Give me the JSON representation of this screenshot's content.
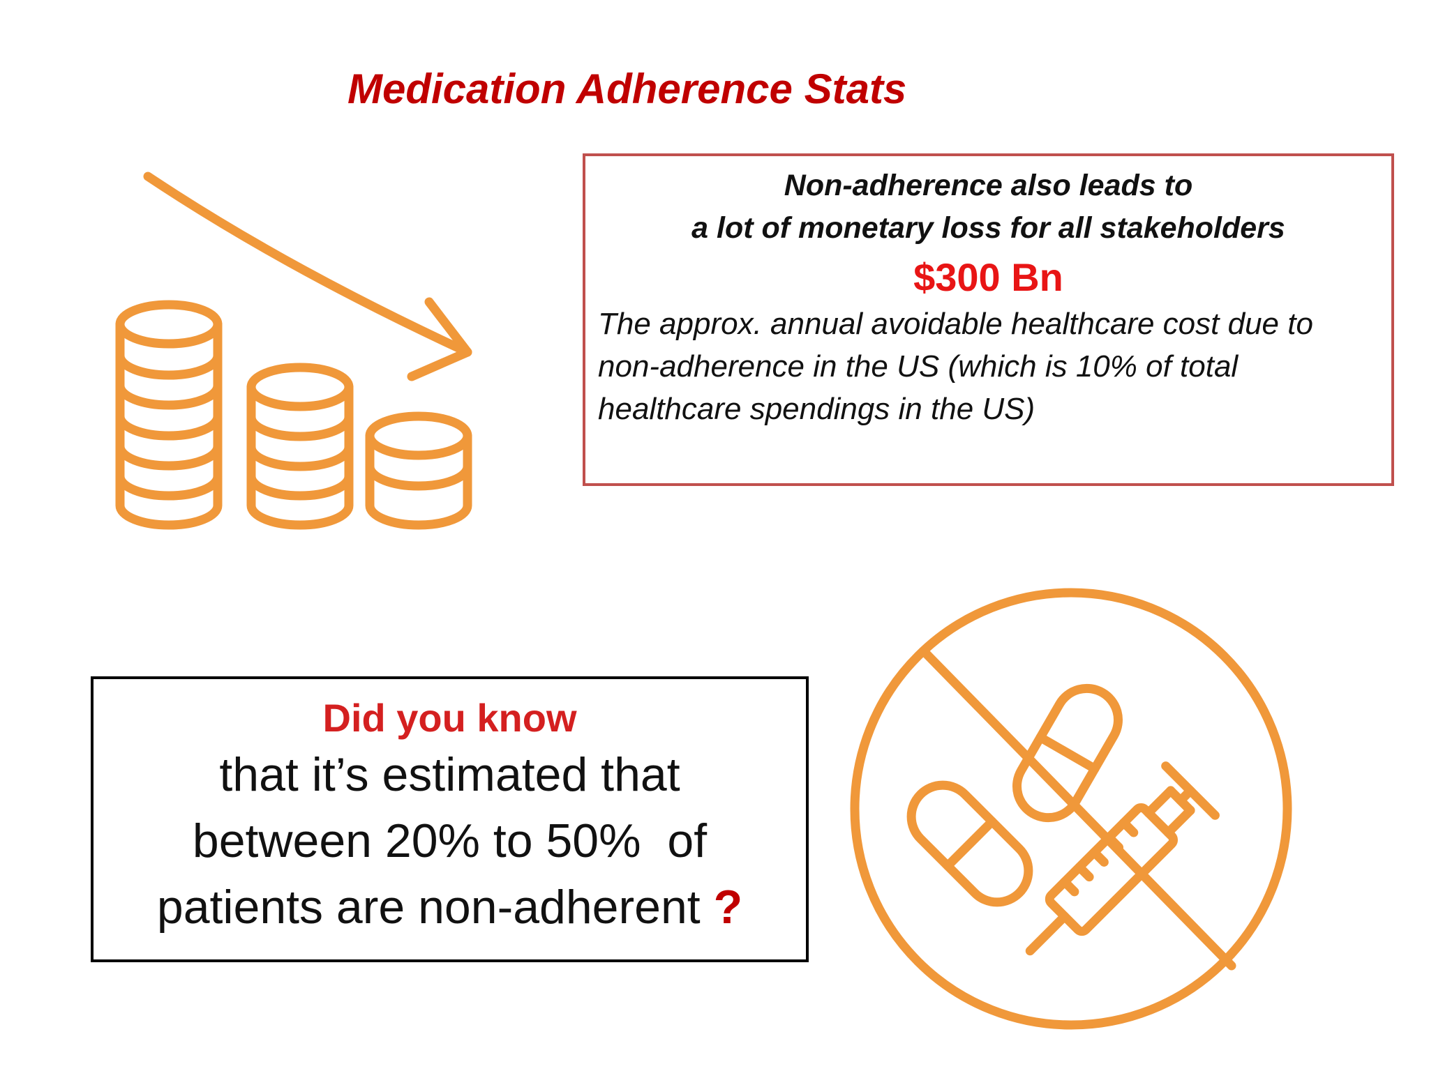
{
  "slide": {
    "title": "Medication Adherence Stats"
  },
  "cost_box": {
    "heading_line1": "Non-adherence also leads to",
    "heading_line2": "a lot of monetary loss for all stakeholders",
    "amount": "$300 Bn",
    "description": "The approx. annual avoidable healthcare cost due to non-adherence in the US (which is 10% of total healthcare spendings in the US)"
  },
  "know_box": {
    "heading": "Did you know",
    "line1": "that it’s estimated that",
    "line2": "between 20% to 50%  of",
    "line3": "patients are non-adherent",
    "question_mark": "?"
  },
  "icons": {
    "coins": "declining-coins-icon",
    "no_medication": "no-medication-icon",
    "color": "#f0983a"
  },
  "colors": {
    "title": "#c00000",
    "amount": "#e81515",
    "cost_border": "#c0504d",
    "know_border": "#000000"
  }
}
